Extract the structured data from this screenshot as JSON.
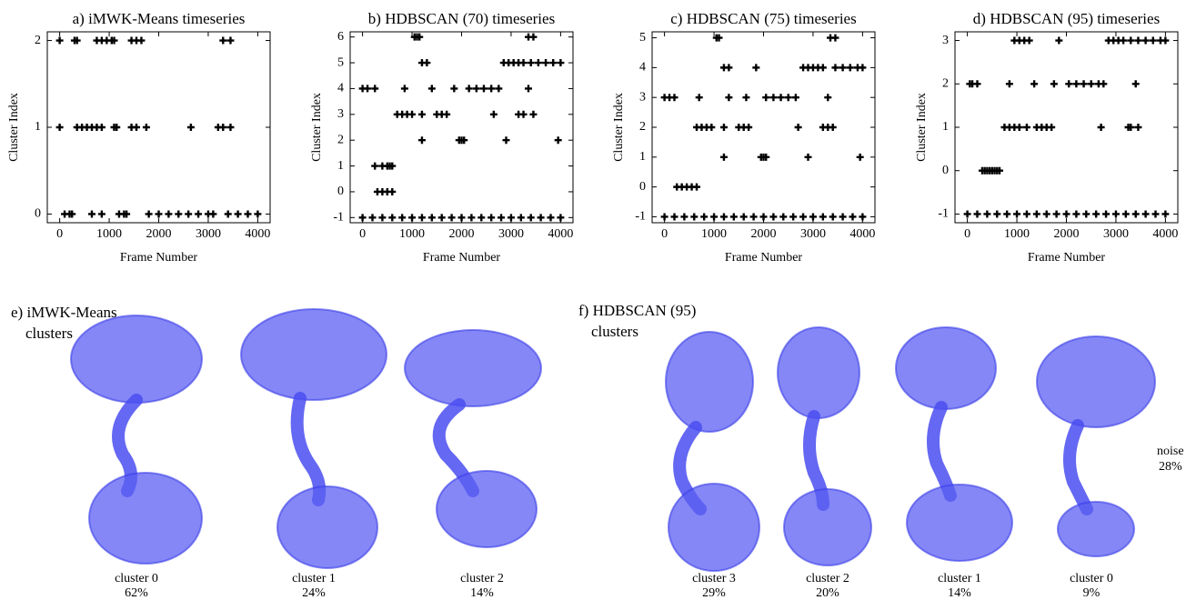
{
  "chart_data": [
    {
      "type": "scatter",
      "title": "a) iMWK-Means timeseries",
      "xlabel": "Frame Number",
      "ylabel": "Cluster Index",
      "color": "#000000",
      "marker": "+",
      "xlim": [
        -250,
        4250
      ],
      "xticks": [
        0,
        1000,
        2000,
        3000,
        4000
      ],
      "ylim": [
        -0.1,
        2.1
      ],
      "yticks": [
        0,
        1,
        2
      ],
      "x": [
        0,
        300,
        350,
        750,
        850,
        950,
        1050,
        1100,
        1450,
        1550,
        1650,
        3300,
        3450,
        0,
        350,
        450,
        550,
        650,
        750,
        850,
        1100,
        1150,
        1450,
        1550,
        1750,
        2650,
        3200,
        3300,
        3450,
        100,
        200,
        250,
        650,
        850,
        1200,
        1300,
        1350,
        1800,
        2000,
        2200,
        2400,
        2600,
        2800,
        3000,
        3100,
        3400,
        3600,
        3800,
        4000
      ],
      "values": [
        2,
        2,
        2,
        2,
        2,
        2,
        2,
        2,
        2,
        2,
        2,
        2,
        2,
        1,
        1,
        1,
        1,
        1,
        1,
        1,
        1,
        1,
        1,
        1,
        1,
        1,
        1,
        1,
        1,
        0,
        0,
        0,
        0,
        0,
        0,
        0,
        0,
        0,
        0,
        0,
        0,
        0,
        0,
        0,
        0,
        0,
        0,
        0,
        0
      ]
    },
    {
      "type": "scatter",
      "title": "b) HDBSCAN (70) timeseries",
      "xlabel": "Frame Number",
      "ylabel": "Cluster Index",
      "color": "#000000",
      "marker": "+",
      "xlim": [
        -250,
        4250
      ],
      "xticks": [
        0,
        1000,
        2000,
        3000,
        4000
      ],
      "ylim": [
        -1.2,
        6.2
      ],
      "yticks": [
        -1,
        0,
        1,
        2,
        3,
        4,
        5,
        6
      ],
      "x": [
        1050,
        1100,
        1150,
        3350,
        3450,
        1200,
        1300,
        2850,
        2950,
        3050,
        3150,
        3250,
        3400,
        3550,
        3700,
        3850,
        4000,
        0,
        100,
        250,
        850,
        1400,
        1850,
        2150,
        2300,
        2450,
        2600,
        2750,
        3350,
        700,
        800,
        900,
        1000,
        1200,
        1500,
        1600,
        1700,
        2650,
        3150,
        3250,
        3450,
        1200,
        1950,
        2000,
        2050,
        2900,
        3950,
        250,
        400,
        500,
        550,
        600,
        300,
        400,
        500,
        600,
        0,
        200,
        400,
        600,
        800,
        1000,
        1200,
        1400,
        1600,
        1800,
        2000,
        2200,
        2400,
        2600,
        2800,
        3000,
        3200,
        3400,
        3600,
        3800,
        4000
      ],
      "values": [
        6,
        6,
        6,
        6,
        6,
        5,
        5,
        5,
        5,
        5,
        5,
        5,
        5,
        5,
        5,
        5,
        5,
        4,
        4,
        4,
        4,
        4,
        4,
        4,
        4,
        4,
        4,
        4,
        4,
        3,
        3,
        3,
        3,
        3,
        3,
        3,
        3,
        3,
        3,
        3,
        3,
        2,
        2,
        2,
        2,
        2,
        2,
        1,
        1,
        1,
        1,
        1,
        0,
        0,
        0,
        0,
        -1,
        -1,
        -1,
        -1,
        -1,
        -1,
        -1,
        -1,
        -1,
        -1,
        -1,
        -1,
        -1,
        -1,
        -1,
        -1,
        -1,
        -1,
        -1,
        -1,
        -1
      ]
    },
    {
      "type": "scatter",
      "title": "c) HDBSCAN (75) timeseries",
      "xlabel": "Frame Number",
      "ylabel": "Cluster Index",
      "color": "#000000",
      "marker": "+",
      "xlim": [
        -250,
        4250
      ],
      "xticks": [
        0,
        1000,
        2000,
        3000,
        4000
      ],
      "ylim": [
        -1.2,
        5.2
      ],
      "yticks": [
        -1,
        0,
        1,
        2,
        3,
        4,
        5
      ],
      "x": [
        1050,
        1100,
        3350,
        3450,
        1200,
        1300,
        1850,
        2800,
        2900,
        3000,
        3100,
        3200,
        3450,
        3600,
        3750,
        3900,
        4000,
        0,
        100,
        200,
        700,
        1300,
        1650,
        2050,
        2200,
        2350,
        2500,
        2650,
        3300,
        650,
        750,
        850,
        950,
        1200,
        1500,
        1600,
        1700,
        2700,
        3200,
        3300,
        3400,
        1200,
        1950,
        2000,
        2050,
        2900,
        3950,
        250,
        350,
        450,
        550,
        650,
        0,
        200,
        400,
        600,
        800,
        1000,
        1200,
        1400,
        1600,
        1800,
        2000,
        2200,
        2400,
        2600,
        2800,
        3000,
        3200,
        3400,
        3600,
        3800,
        4000
      ],
      "values": [
        5,
        5,
        5,
        5,
        4,
        4,
        4,
        4,
        4,
        4,
        4,
        4,
        4,
        4,
        4,
        4,
        4,
        3,
        3,
        3,
        3,
        3,
        3,
        3,
        3,
        3,
        3,
        3,
        3,
        2,
        2,
        2,
        2,
        2,
        2,
        2,
        2,
        2,
        2,
        2,
        2,
        1,
        1,
        1,
        1,
        1,
        1,
        0,
        0,
        0,
        0,
        0,
        -1,
        -1,
        -1,
        -1,
        -1,
        -1,
        -1,
        -1,
        -1,
        -1,
        -1,
        -1,
        -1,
        -1,
        -1,
        -1,
        -1,
        -1,
        -1,
        -1,
        -1
      ]
    },
    {
      "type": "scatter",
      "title": "d) HDBSCAN (95) timeseries",
      "xlabel": "Frame Number",
      "ylabel": "Cluster Index",
      "color": "#000000",
      "marker": "+",
      "xlim": [
        -250,
        4250
      ],
      "xticks": [
        0,
        1000,
        2000,
        3000,
        4000
      ],
      "ylim": [
        -1.2,
        3.2
      ],
      "yticks": [
        -1,
        0,
        1,
        2,
        3
      ],
      "x": [
        950,
        1050,
        1150,
        1250,
        1850,
        2850,
        2950,
        3050,
        3150,
        3300,
        3450,
        3600,
        3750,
        3900,
        4000,
        50,
        100,
        200,
        850,
        1350,
        1750,
        2050,
        2200,
        2350,
        2500,
        2650,
        2750,
        3400,
        750,
        850,
        950,
        1050,
        1200,
        1400,
        1500,
        1600,
        1700,
        2700,
        3250,
        3300,
        3450,
        300,
        350,
        400,
        450,
        500,
        550,
        600,
        650,
        0,
        200,
        400,
        600,
        800,
        1000,
        1200,
        1400,
        1600,
        1800,
        2000,
        2200,
        2400,
        2600,
        2800,
        3000,
        3200,
        3400,
        3600,
        3800,
        4000
      ],
      "values": [
        3,
        3,
        3,
        3,
        3,
        3,
        3,
        3,
        3,
        3,
        3,
        3,
        3,
        3,
        3,
        2,
        2,
        2,
        2,
        2,
        2,
        2,
        2,
        2,
        2,
        2,
        2,
        2,
        1,
        1,
        1,
        1,
        1,
        1,
        1,
        1,
        1,
        1,
        1,
        1,
        1,
        0,
        0,
        0,
        0,
        0,
        0,
        0,
        0,
        -1,
        -1,
        -1,
        -1,
        -1,
        -1,
        -1,
        -1,
        -1,
        -1,
        -1,
        -1,
        -1,
        -1,
        -1,
        -1,
        -1,
        -1,
        -1,
        -1,
        -1
      ]
    }
  ],
  "panels": {
    "e": {
      "title": "e) iMWK-Means",
      "subtitle": "clusters",
      "clusters": [
        {
          "label": "cluster 0",
          "percent": "62%"
        },
        {
          "label": "cluster 1",
          "percent": "24%"
        },
        {
          "label": "cluster 2",
          "percent": "14%"
        }
      ]
    },
    "f": {
      "title": "f) HDBSCAN (95)",
      "subtitle": "clusters",
      "clusters": [
        {
          "label": "cluster 3",
          "percent": "29%"
        },
        {
          "label": "cluster 2",
          "percent": "20%"
        },
        {
          "label": "cluster 1",
          "percent": "14%"
        },
        {
          "label": "cluster 0",
          "percent": "9%"
        }
      ],
      "noise": {
        "label": "noise",
        "percent": "28%"
      }
    }
  }
}
